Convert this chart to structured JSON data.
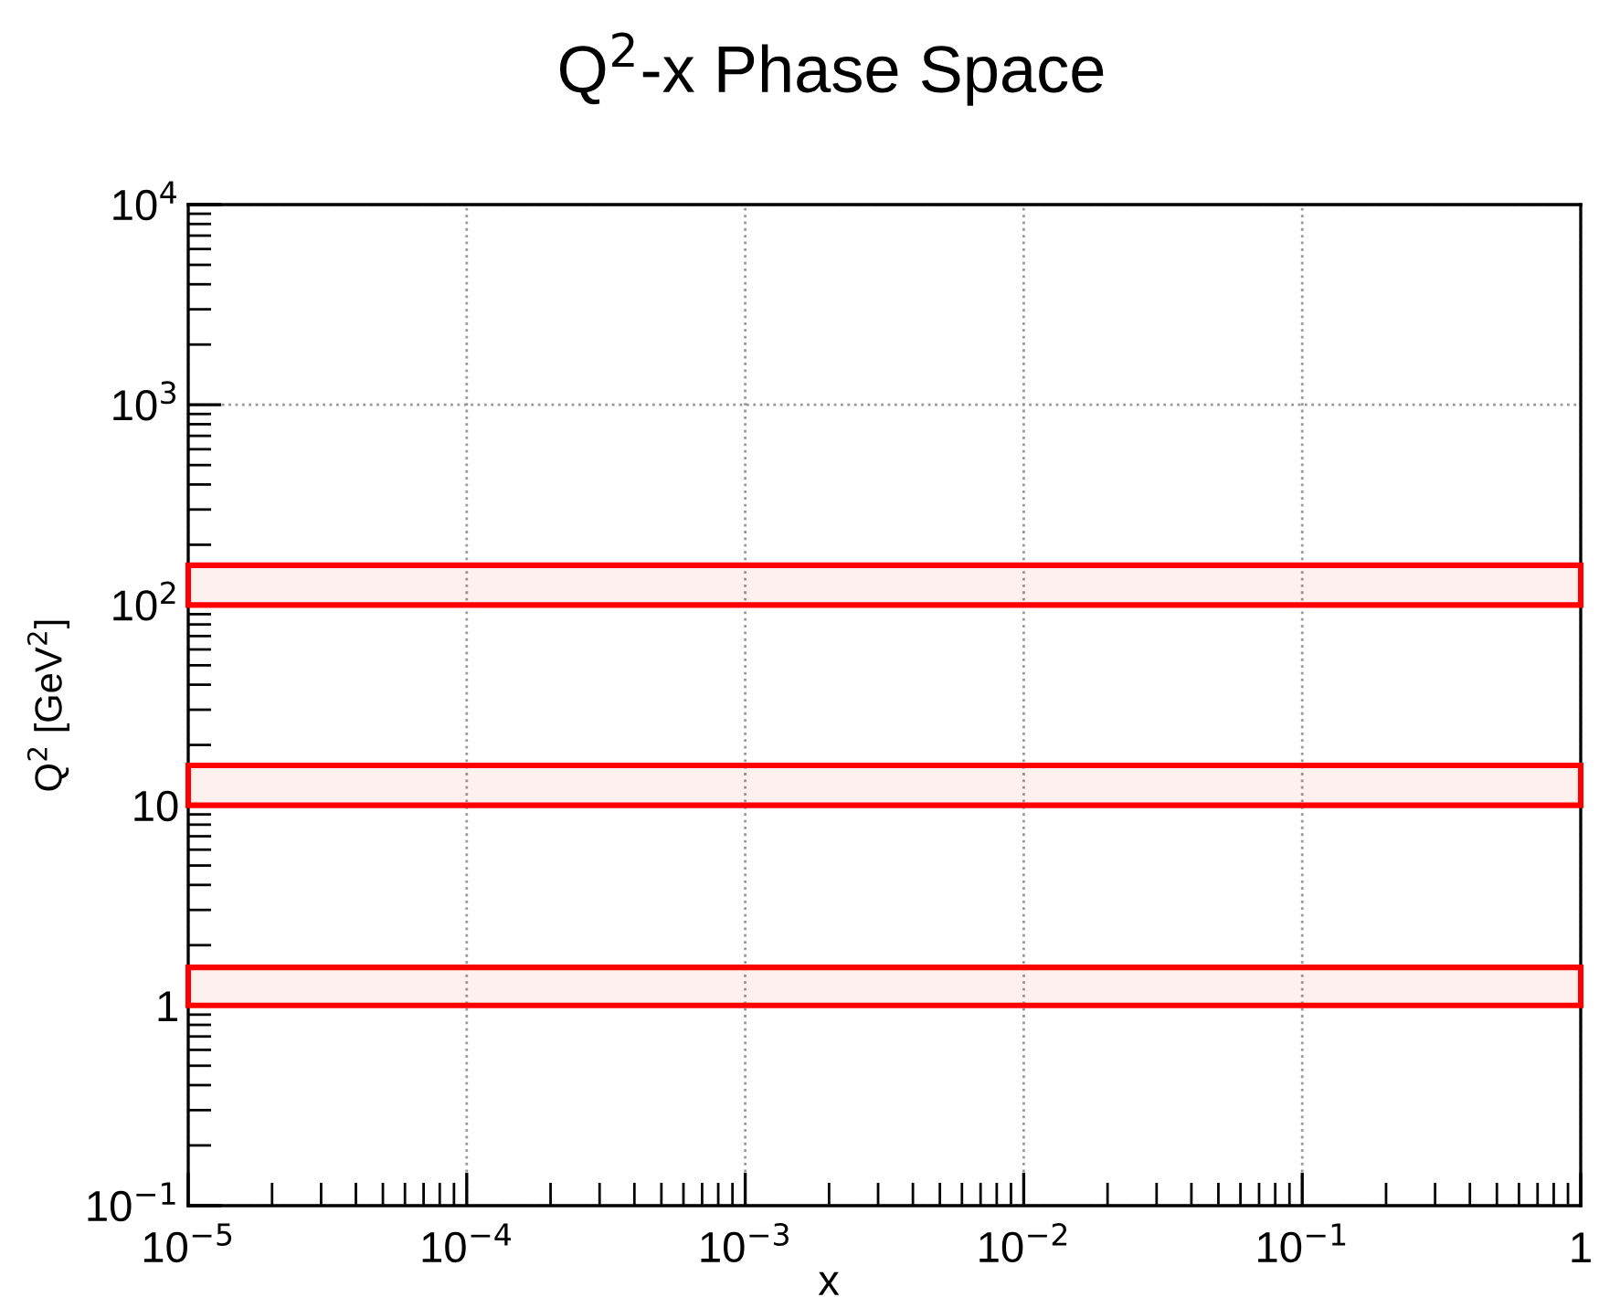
{
  "chart_data": {
    "type": "line",
    "title": "Q$^{2}$-x Phase Space",
    "xlabel": "x",
    "ylabel": "Q$^{2}$ [GeV$^{2}$]",
    "log": "xy",
    "xlim": [
      1e-05,
      1
    ],
    "ylim": [
      0.1,
      10000
    ],
    "xticks": [
      {
        "value": 1e-05,
        "label": "10$^{−5}$"
      },
      {
        "value": 0.0001,
        "label": "10$^{−4}$"
      },
      {
        "value": 0.001,
        "label": "10$^{−3}$"
      },
      {
        "value": 0.01,
        "label": "10$^{−2}$"
      },
      {
        "value": 0.1,
        "label": "10$^{−1}$"
      },
      1
    ],
    "yticks": [
      {
        "value": 0.1,
        "label": "10$^{−1}$"
      },
      1,
      10,
      {
        "value": 100,
        "label": "10$^{2}$"
      },
      {
        "value": 1000,
        "label": "10$^{3}$"
      },
      {
        "value": 10000,
        "label": "10$^{4}$"
      }
    ],
    "grid": true,
    "bands": [
      {
        "axis": "y",
        "from": 1,
        "to": 1.55,
        "color": "#ff0000"
      },
      {
        "axis": "y",
        "from": 10,
        "to": 15.8,
        "color": "#ff0000"
      },
      {
        "axis": "y",
        "from": 100,
        "to": 158,
        "color": "#ff0000"
      }
    ]
  }
}
